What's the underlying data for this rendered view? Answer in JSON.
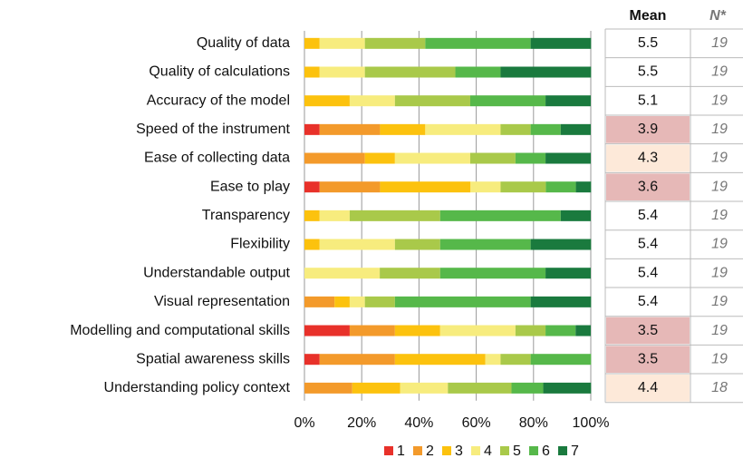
{
  "chart_data": {
    "type": "stacked_bar_horizontal",
    "categories": [
      "Quality of data",
      "Quality of calculations",
      "Accuracy of the model",
      "Speed of the instrument",
      "Ease of collecting data",
      "Ease to play",
      "Transparency",
      "Flexibility",
      "Understandable output",
      "Visual representation",
      "Modelling and computational skills",
      "Spatial awareness skills",
      "Understanding policy context"
    ],
    "series": [
      {
        "name": "1",
        "color": "#e8312a",
        "values": [
          0,
          0,
          0,
          5.3,
          0,
          5.3,
          0,
          0,
          0,
          0,
          15.8,
          5.3,
          0
        ]
      },
      {
        "name": "2",
        "color": "#f39a2b",
        "values": [
          0,
          0,
          0,
          21.1,
          21.1,
          21.1,
          0,
          0,
          0,
          10.5,
          15.8,
          26.3,
          16.7
        ]
      },
      {
        "name": "3",
        "color": "#fcc20e",
        "values": [
          5.3,
          5.3,
          15.8,
          15.8,
          10.5,
          31.6,
          5.3,
          5.3,
          0,
          5.3,
          15.8,
          31.6,
          16.7
        ]
      },
      {
        "name": "4",
        "color": "#f7ec7e",
        "values": [
          15.8,
          15.8,
          15.8,
          26.3,
          26.3,
          10.5,
          10.5,
          26.3,
          26.3,
          5.3,
          26.3,
          5.3,
          16.7
        ]
      },
      {
        "name": "5",
        "color": "#a9c94a",
        "values": [
          21.1,
          31.6,
          26.3,
          10.5,
          15.8,
          15.8,
          31.6,
          15.8,
          21.1,
          10.5,
          10.5,
          10.5,
          22.2
        ]
      },
      {
        "name": "6",
        "color": "#56b84a",
        "values": [
          36.8,
          15.8,
          26.3,
          10.5,
          10.5,
          10.5,
          42.1,
          31.6,
          36.8,
          47.4,
          10.5,
          21.1,
          11.1
        ]
      },
      {
        "name": "7",
        "color": "#1a7a3e",
        "values": [
          21.1,
          31.6,
          15.8,
          10.5,
          15.8,
          5.3,
          10.5,
          21.1,
          15.8,
          21.1,
          5.3,
          0,
          16.7
        ]
      }
    ],
    "xlim": [
      0,
      100
    ],
    "xticks": [
      {
        "value": 0,
        "label": "0%"
      },
      {
        "value": 20,
        "label": "20%"
      },
      {
        "value": 40,
        "label": "40%"
      },
      {
        "value": 60,
        "label": "60%"
      },
      {
        "value": 80,
        "label": "80%"
      },
      {
        "value": 100,
        "label": "100%"
      }
    ],
    "grid": true,
    "legend": "bottom",
    "table": {
      "headers": [
        "Mean",
        "N*"
      ],
      "rows": [
        [
          5.5,
          19
        ],
        [
          5.5,
          19
        ],
        [
          5.1,
          19
        ],
        [
          3.9,
          19
        ],
        [
          4.3,
          19
        ],
        [
          3.6,
          19
        ],
        [
          5.4,
          19
        ],
        [
          5.4,
          19
        ],
        [
          5.4,
          19
        ],
        [
          5.4,
          19
        ],
        [
          3.5,
          19
        ],
        [
          3.5,
          19
        ],
        [
          4.4,
          18
        ]
      ],
      "cell_colors": [
        null,
        null,
        null,
        "#e6b8b7",
        "#fde9d9",
        "#e6b8b7",
        null,
        null,
        null,
        null,
        "#e6b8b7",
        "#e6b8b7",
        "#fde9d9"
      ]
    }
  }
}
